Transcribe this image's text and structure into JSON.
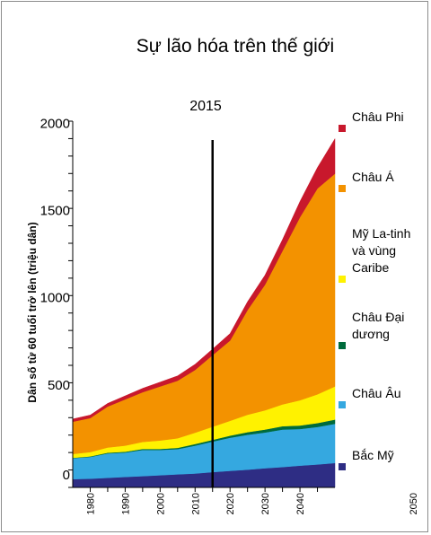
{
  "chart_data": {
    "type": "area",
    "stacked": true,
    "title": "Sự lão hóa trên thế giới",
    "ylabel": "Dân số từ 60 tuổi trở lên (triệu dân)",
    "xlabel": "",
    "xlim": [
      1975,
      2050
    ],
    "ylim": [
      0,
      2100
    ],
    "grid": false,
    "legend_position": "right",
    "x_ticks": [
      1980,
      1985,
      1990,
      1995,
      2000,
      2005,
      2010,
      2015,
      2020,
      2025,
      2030,
      2035,
      2040,
      2045
    ],
    "x_tick_labels": [
      "1980",
      "1990",
      "2000",
      "2010",
      "2020",
      "2030",
      "2040",
      "2050"
    ],
    "x_tick_label_values": [
      1980,
      1990,
      2000,
      2010,
      2020,
      2030,
      2040,
      2050
    ],
    "y_ticks": [
      0,
      100,
      200,
      300,
      400,
      500,
      600,
      700,
      800,
      900,
      1000,
      1100,
      1200,
      1300,
      1400,
      1500,
      1600,
      1700,
      1800,
      1900,
      2000,
      2100
    ],
    "y_tick_labels": [
      "0",
      "500",
      "1000",
      "1500",
      "2000"
    ],
    "y_tick_label_values": [
      0,
      500,
      1000,
      1500,
      2000
    ],
    "marker": {
      "x": 2015,
      "label": "2015"
    },
    "x": [
      1975,
      1980,
      1985,
      1990,
      1995,
      2000,
      2005,
      2010,
      2015,
      2020,
      2025,
      2030,
      2035,
      2040,
      2045,
      2050
    ],
    "series": [
      {
        "name": "Bắc Mỹ",
        "color": "#2e2d84",
        "values": [
          48,
          50,
          55,
          60,
          65,
          70,
          75,
          80,
          88,
          95,
          102,
          110,
          117,
          125,
          132,
          140
        ]
      },
      {
        "name": "Châu Âu",
        "color": "#35a8e0",
        "values": [
          120,
          125,
          140,
          140,
          150,
          145,
          145,
          160,
          175,
          190,
          200,
          205,
          215,
          210,
          215,
          225
        ]
      },
      {
        "name": "Châu Đại dương",
        "color": "#006b3c",
        "values": [
          2,
          3,
          4,
          5,
          6,
          6,
          7,
          9,
          10,
          12,
          15,
          17,
          19,
          20,
          22,
          24
        ]
      },
      {
        "name": "Mỹ La-tinh và vùng Caribe",
        "color": "#fff200",
        "values": [
          22,
          25,
          30,
          35,
          40,
          48,
          55,
          65,
          75,
          85,
          100,
          110,
          125,
          145,
          165,
          190
        ]
      },
      {
        "name": "Châu Á",
        "color": "#f39200",
        "values": [
          185,
          195,
          235,
          265,
          285,
          310,
          330,
          360,
          410,
          460,
          600,
          720,
          880,
          1050,
          1180,
          1220
        ]
      },
      {
        "name": "Châu Phi",
        "color": "#c8182c",
        "values": [
          15,
          17,
          18,
          20,
          22,
          25,
          28,
          32,
          35,
          40,
          48,
          55,
          65,
          90,
          120,
          200
        ]
      }
    ]
  }
}
